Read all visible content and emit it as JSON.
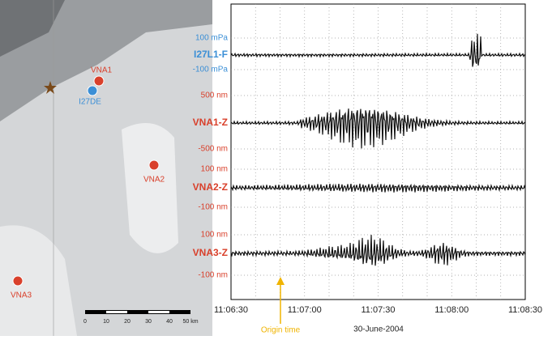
{
  "map": {
    "stations": [
      {
        "label": "VNA1",
        "color": "#d9402b"
      },
      {
        "label": "I27DE",
        "color": "#3b8fd6"
      },
      {
        "label": "VNA2",
        "color": "#d9402b"
      },
      {
        "label": "VNA3",
        "color": "#d9402b"
      }
    ],
    "scale": [
      "0",
      "10",
      "20",
      "30",
      "40",
      "50 km"
    ]
  },
  "traces": [
    {
      "name": "I27L1-F",
      "upper": "100 mPa",
      "lower": "-100 mPa",
      "color": "#3b8fd6"
    },
    {
      "name": "VNA1-Z",
      "upper": "500 nm",
      "lower": "-500 nm",
      "color": "#d9402b"
    },
    {
      "name": "VNA2-Z",
      "upper": "100 nm",
      "lower": "-100 nm",
      "color": "#d9402b"
    },
    {
      "name": "VNA3-Z",
      "upper": "100 nm",
      "lower": "-100 nm",
      "color": "#d9402b"
    }
  ],
  "time_axis": {
    "ticks": [
      "11:06:30",
      "11:07:00",
      "11:07:30",
      "11:08:00",
      "11:08:30"
    ],
    "origin_label": "Origin time",
    "origin_color": "#f0b400",
    "date": "30-June-2004"
  }
}
